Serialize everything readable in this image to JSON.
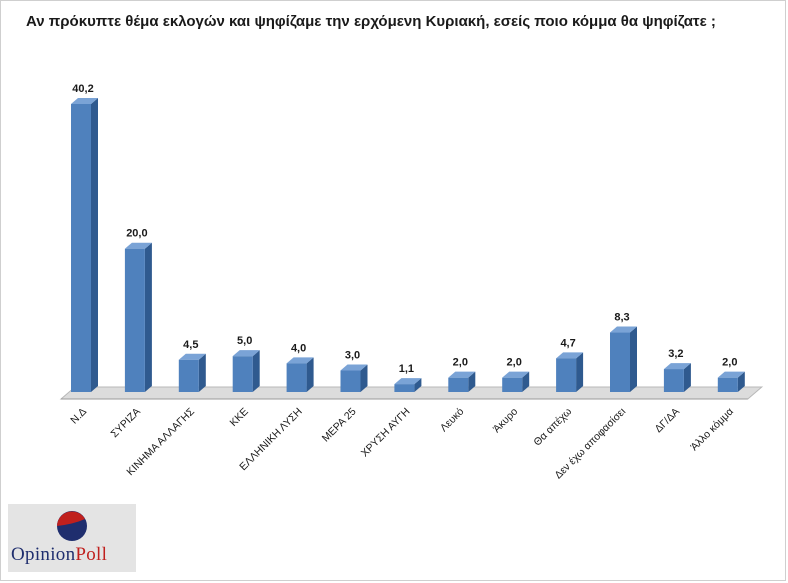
{
  "title": "Αν πρόκυπτε θέμα εκλογών και ψηφίζαμε την ερχόμενη Κυριακή, εσείς ποιο κόμμα θα ψηφίζατε ;",
  "logo": {
    "text_main": "Opinion",
    "text_accent": "Poll",
    "icon": "opinionpoll-logo-icon"
  },
  "colors": {
    "bar_front": "#4f81bd",
    "bar_side": "#2f5a8f",
    "bar_top": "#7aa3d6",
    "floor": "#dcdcdc"
  },
  "chart_data": {
    "type": "bar",
    "title": "Αν πρόκυπτε θέμα εκλογών και ψηφίζαμε την ερχόμενη Κυριακή, εσείς ποιο κόμμα θα ψηφίζατε ;",
    "categories": [
      "Ν.Δ",
      "ΣΥΡΙΖΑ",
      "ΚΙΝΗΜΑ ΑΛΛΑΓΗΣ",
      "ΚΚΕ",
      "ΕΛΛΗΝΙΚΗ ΛΥΣΗ",
      "ΜΕΡΑ 25",
      "ΧΡΥΣΗ ΑΥΓΗ",
      "Λευκό",
      "Άκυρο",
      "Θα απέχω",
      "Δεν έχω αποφασίσει",
      "ΔΓ/ΔΑ",
      "Άλλο κόμμα"
    ],
    "values": [
      40.2,
      20.0,
      4.5,
      5.0,
      4.0,
      3.0,
      1.1,
      2.0,
      2.0,
      4.7,
      8.3,
      3.2,
      2.0
    ],
    "labels": [
      "40,2",
      "20,0",
      "4,5",
      "5,0",
      "4,0",
      "3,0",
      "1,1",
      "2,0",
      "2,0",
      "4,7",
      "8,3",
      "3,2",
      "2,0"
    ],
    "ylim": [
      0,
      40.2
    ],
    "grid": false,
    "legend": "none"
  }
}
